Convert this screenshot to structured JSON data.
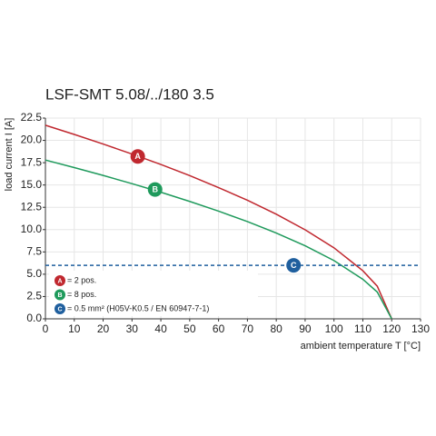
{
  "chart_data": {
    "type": "line",
    "title": "LSF-SMT 5.08/../180 3.5",
    "y_label": "load current I [A]",
    "x_label": "ambient temperature T [°C]",
    "xlim": [
      0,
      130
    ],
    "ylim": [
      0,
      22.5
    ],
    "xticks": [
      0,
      10,
      20,
      30,
      40,
      50,
      60,
      70,
      80,
      90,
      100,
      110,
      120,
      130
    ],
    "yticks": [
      {
        "value": 0,
        "label": "0.0"
      },
      2.5,
      {
        "value": 5,
        "label": "5.0"
      },
      7.5,
      {
        "value": 10,
        "label": "10.0"
      },
      12.5,
      {
        "value": 15,
        "label": "15.0"
      },
      17.5,
      {
        "value": 20,
        "label": "20.0"
      },
      22.5
    ],
    "grid": true,
    "series": [
      {
        "name": "= 2 pos.",
        "key": "A",
        "color": "#c0282f",
        "dash": false,
        "x": [
          0,
          10,
          20,
          30,
          40,
          50,
          60,
          70,
          80,
          90,
          100,
          110,
          115,
          120
        ],
        "values": [
          21.7,
          20.67,
          19.59,
          18.47,
          17.3,
          16.05,
          14.71,
          13.29,
          11.73,
          9.98,
          7.96,
          5.39,
          3.66,
          0
        ]
      },
      {
        "name": "= 8 pos.",
        "key": "B",
        "color": "#1f9a5c",
        "dash": false,
        "x": [
          0,
          10,
          20,
          30,
          40,
          50,
          60,
          70,
          80,
          90,
          100,
          110,
          115,
          120
        ],
        "values": [
          17.8,
          16.95,
          16.07,
          15.15,
          14.19,
          13.16,
          12.07,
          10.9,
          9.62,
          8.19,
          6.53,
          4.43,
          3.0,
          0
        ]
      },
      {
        "name": "= 0.5 mm² (H05V-K0.5 / EN 60947-7-1)",
        "key": "C",
        "color": "#1f5f9e",
        "dash": true,
        "x": [
          0,
          130
        ],
        "values": [
          6,
          6
        ]
      }
    ],
    "annotations": [
      {
        "text": "A",
        "x": 32,
        "y": 18.2,
        "color": "#c0282f"
      },
      {
        "text": "B",
        "x": 38,
        "y": 14.5,
        "color": "#1f9a5c"
      },
      {
        "text": "C",
        "x": 86,
        "y": 6,
        "color": "#1f5f9e"
      }
    ]
  }
}
